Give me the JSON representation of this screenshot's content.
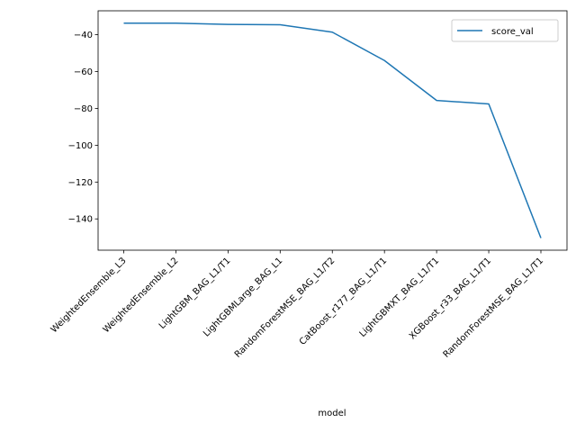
{
  "chart_data": {
    "type": "line",
    "xlabel": "model",
    "ylabel": "",
    "categories": [
      "WeightedEnsemble_L3",
      "WeightedEnsemble_L2",
      "LightGBM_BAG_L1/T1",
      "LightGBMLarge_BAG_L1",
      "RandomForestMSE_BAG_L1/T2",
      "CatBoost_r177_BAG_L1/T1",
      "LightGBMXT_BAG_L1/T1",
      "XGBoost_r33_BAG_L1/T1",
      "RandomForestMSE_BAG_L1/T1"
    ],
    "series": [
      {
        "name": "score_val",
        "values": [
          -33.7,
          -33.7,
          -34.4,
          -34.6,
          -38.6,
          -54.0,
          -75.7,
          -77.6,
          -150.4
        ],
        "color": "#1f77b4"
      }
    ],
    "ylim": [
      -157,
      -27
    ],
    "yticks": [
      -140,
      -120,
      -100,
      -80,
      -60,
      -40
    ],
    "ytick_labels": [
      "−140",
      "−120",
      "−100",
      "−80",
      "−60",
      "−40"
    ],
    "grid": false,
    "legend_position": "upper right"
  }
}
